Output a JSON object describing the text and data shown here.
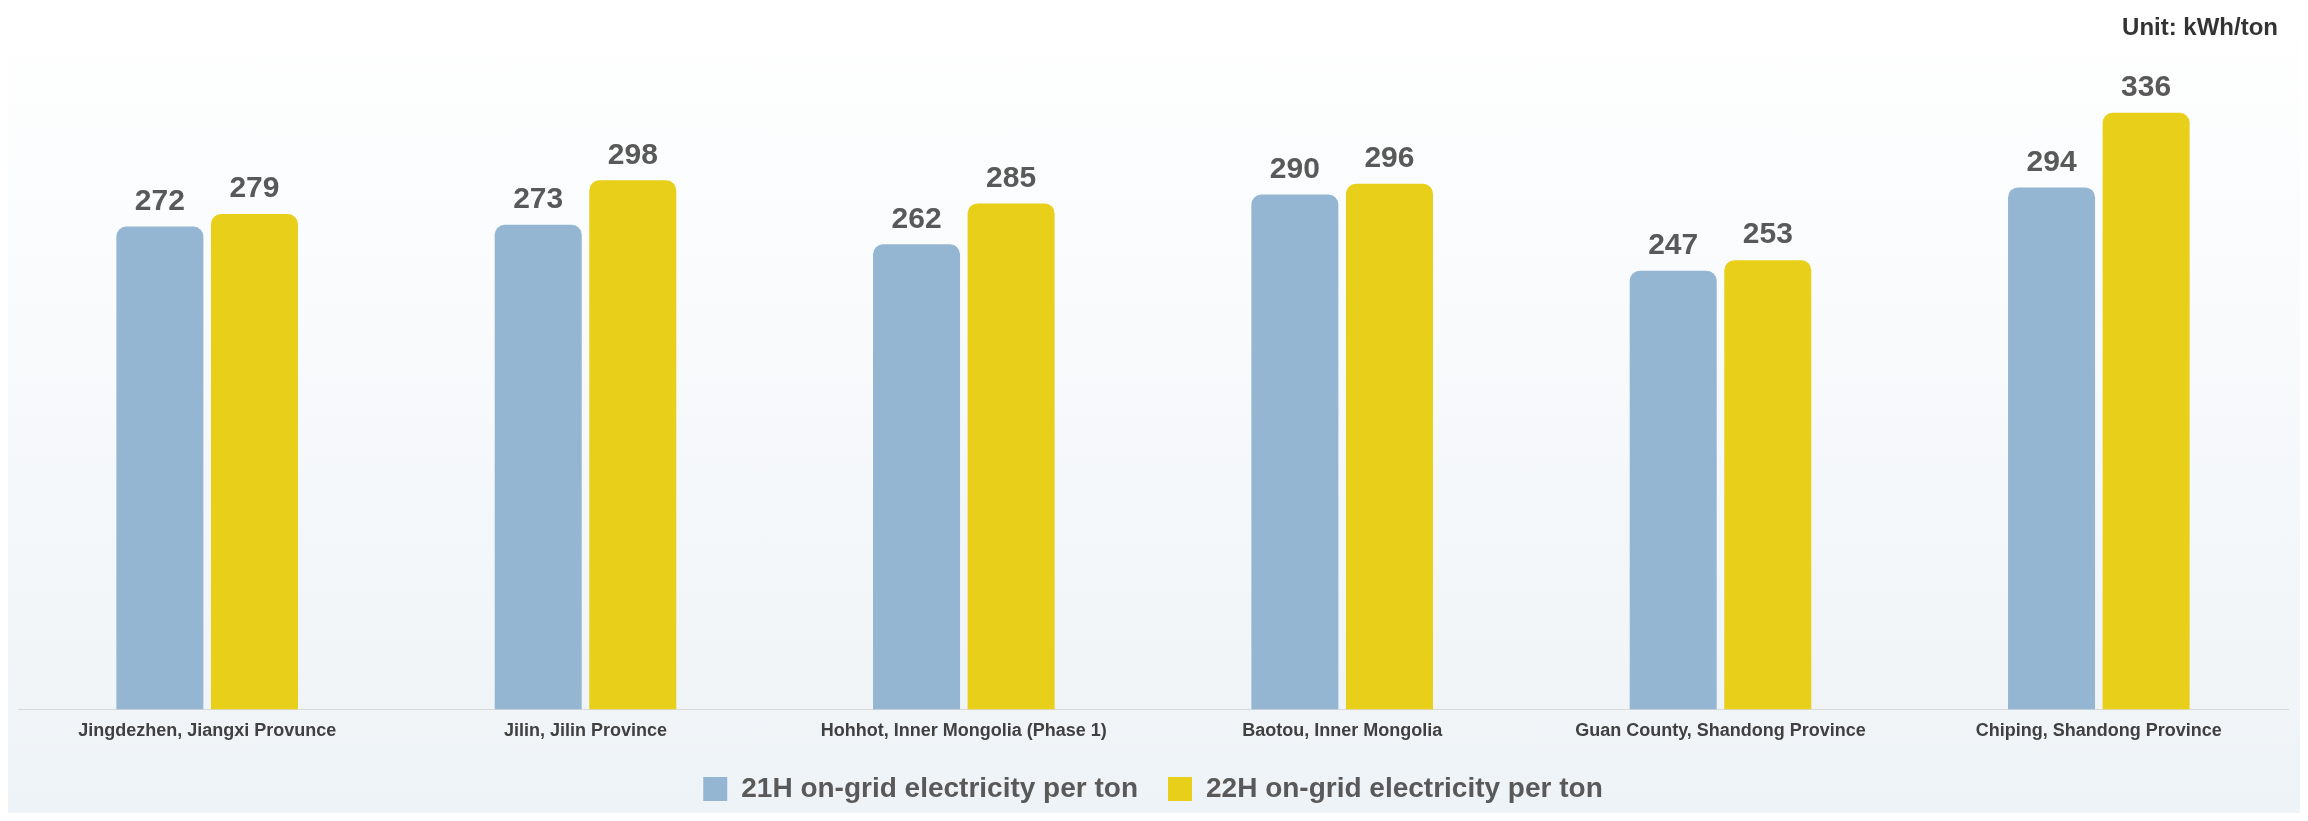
{
  "chart_data": {
    "type": "bar",
    "categories": [
      "Jingdezhen, Jiangxi Provunce",
      "Jilin, Jilin Province",
      "Hohhot, Inner Mongolia (Phase 1)",
      "Baotou, Inner Mongolia",
      "Guan County, Shandong Province",
      "Chiping, Shandong Province"
    ],
    "series": [
      {
        "name": "21H on-grid electricity per ton",
        "color": "#94b6d2",
        "values": [
          272,
          273,
          262,
          290,
          247,
          294
        ]
      },
      {
        "name": "22H on-grid electricity per ton",
        "color": "#e8cf1a",
        "values": [
          279,
          298,
          285,
          296,
          253,
          336
        ]
      }
    ],
    "data_labels": true,
    "legend": "bottom",
    "grid": false,
    "annotations": [
      "Unit: kWh/ton"
    ]
  }
}
